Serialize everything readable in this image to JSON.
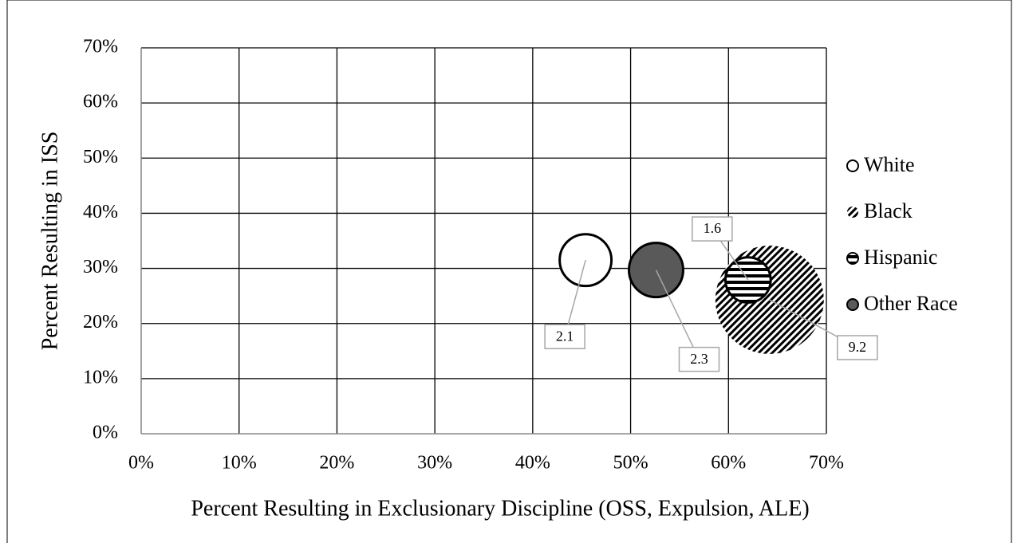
{
  "chart_data": {
    "type": "bubble",
    "xlabel": "Percent Resulting in Exclusionary Discipline (OSS, Expulsion, ALE)",
    "ylabel": "Percent Resulting in ISS",
    "xlim": [
      0,
      70
    ],
    "ylim": [
      0,
      70
    ],
    "xticks": [
      {
        "value": 0,
        "label": "0%"
      },
      {
        "value": 10,
        "label": "10%"
      },
      {
        "value": 20,
        "label": "20%"
      },
      {
        "value": 30,
        "label": "30%"
      },
      {
        "value": 40,
        "label": "40%"
      },
      {
        "value": 50,
        "label": "50%"
      },
      {
        "value": 60,
        "label": "60%"
      },
      {
        "value": 70,
        "label": "70%"
      }
    ],
    "yticks": [
      {
        "value": 0,
        "label": "0%"
      },
      {
        "value": 10,
        "label": "10%"
      },
      {
        "value": 20,
        "label": "20%"
      },
      {
        "value": 30,
        "label": "30%"
      },
      {
        "value": 40,
        "label": "40%"
      },
      {
        "value": 50,
        "label": "50%"
      },
      {
        "value": 60,
        "label": "60%"
      },
      {
        "value": 70,
        "label": "70%"
      }
    ],
    "grid": true,
    "legend": "right",
    "series": [
      {
        "name": "White",
        "color": "#ffffff",
        "fill": "solid",
        "x": [
          45.4
        ],
        "y": [
          31.5
        ],
        "size": [
          2.1
        ]
      },
      {
        "name": "Black",
        "color": "#000000",
        "fill": "diagonal",
        "x": [
          64.2
        ],
        "y": [
          24.3
        ],
        "size": [
          9.2
        ]
      },
      {
        "name": "Hispanic",
        "color": "#000000",
        "fill": "horizontal",
        "x": [
          62.0
        ],
        "y": [
          27.9
        ],
        "size": [
          1.6
        ]
      },
      {
        "name": "Other Race",
        "color": "#595959",
        "fill": "solid",
        "x": [
          52.6
        ],
        "y": [
          29.7
        ],
        "size": [
          2.3
        ]
      }
    ]
  }
}
